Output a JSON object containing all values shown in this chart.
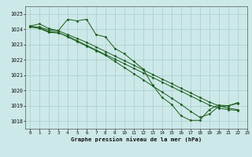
{
  "title": "Graphe pression niveau de la mer (hPa)",
  "bg_color": "#cce8e8",
  "grid_color": "#aacccc",
  "line_color": "#1a5c1a",
  "xlim": [
    -0.5,
    23
  ],
  "ylim": [
    1017.5,
    1025.5
  ],
  "yticks": [
    1018,
    1019,
    1020,
    1021,
    1022,
    1023,
    1024,
    1025
  ],
  "xticks": [
    0,
    1,
    2,
    3,
    4,
    5,
    6,
    7,
    8,
    9,
    10,
    11,
    12,
    13,
    14,
    15,
    16,
    17,
    18,
    19,
    20,
    21,
    22,
    23
  ],
  "series": [
    [
      1024.2,
      1024.35,
      1024.05,
      1023.9,
      1024.65,
      1024.55,
      1024.65,
      1023.65,
      1023.5,
      1022.75,
      1022.4,
      1021.9,
      1021.4,
      1020.35,
      1019.55,
      1019.1,
      1018.35,
      1018.05,
      1018.05,
      1018.75,
      1019.05,
      1019.0,
      1019.2
    ],
    [
      1024.2,
      1024.1,
      1023.85,
      1023.8,
      1023.5,
      1023.2,
      1022.9,
      1022.6,
      1022.3,
      1021.9,
      1021.5,
      1021.1,
      1020.7,
      1020.3,
      1019.9,
      1019.5,
      1019.1,
      1018.65,
      1018.25,
      1018.45,
      1018.95,
      1019.0,
      1019.15
    ],
    [
      1024.15,
      1024.05,
      1023.8,
      1023.75,
      1023.55,
      1023.25,
      1022.95,
      1022.65,
      1022.35,
      1022.05,
      1021.75,
      1021.45,
      1021.15,
      1020.85,
      1020.55,
      1020.25,
      1019.95,
      1019.65,
      1019.35,
      1019.05,
      1018.85,
      1018.75,
      1018.7
    ],
    [
      1024.15,
      1024.15,
      1023.95,
      1023.9,
      1023.65,
      1023.4,
      1023.15,
      1022.85,
      1022.55,
      1022.25,
      1021.95,
      1021.65,
      1021.35,
      1021.05,
      1020.75,
      1020.45,
      1020.15,
      1019.85,
      1019.55,
      1019.25,
      1019.0,
      1018.85,
      1018.75
    ]
  ]
}
